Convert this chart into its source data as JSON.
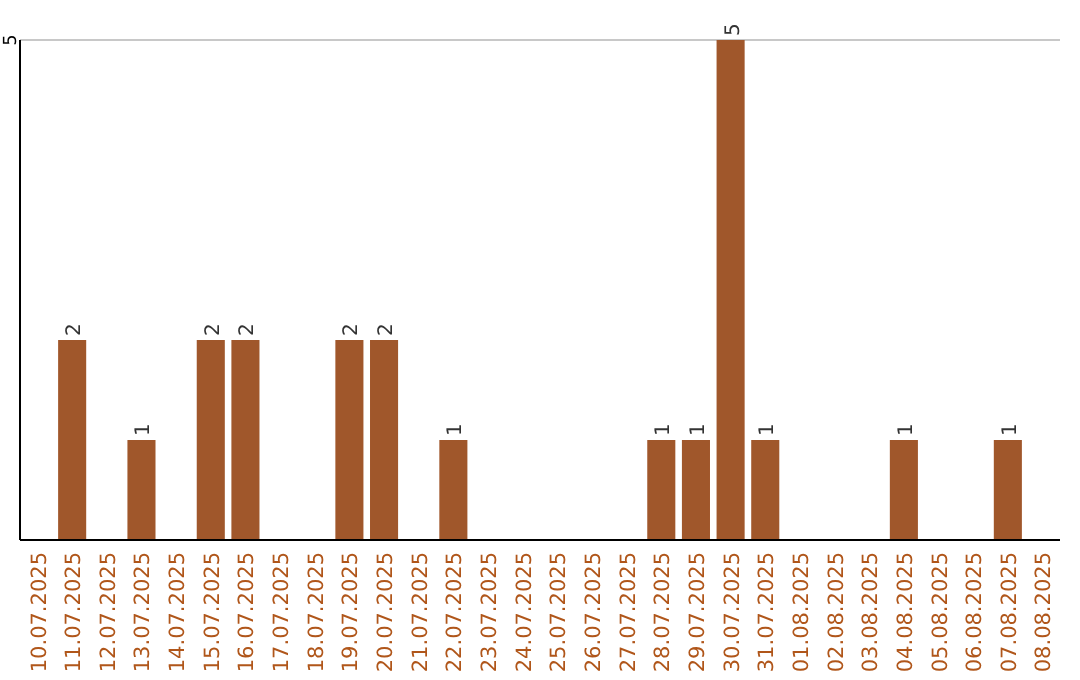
{
  "chart_data": {
    "type": "bar",
    "categories": [
      "10.07.2025",
      "11.07.2025",
      "12.07.2025",
      "13.07.2025",
      "14.07.2025",
      "15.07.2025",
      "16.07.2025",
      "17.07.2025",
      "18.07.2025",
      "19.07.2025",
      "20.07.2025",
      "21.07.2025",
      "22.07.2025",
      "23.07.2025",
      "24.07.2025",
      "25.07.2025",
      "26.07.2025",
      "27.07.2025",
      "28.07.2025",
      "29.07.2025",
      "30.07.2025",
      "31.07.2025",
      "01.08.2025",
      "02.08.2025",
      "03.08.2025",
      "04.08.2025",
      "05.08.2025",
      "06.08.2025",
      "07.08.2025",
      "08.08.2025"
    ],
    "values": [
      0,
      2,
      0,
      1,
      0,
      2,
      2,
      0,
      0,
      2,
      2,
      0,
      1,
      0,
      0,
      0,
      0,
      0,
      1,
      1,
      5,
      1,
      0,
      0,
      0,
      1,
      0,
      0,
      1,
      0
    ],
    "value_labels": [
      null,
      "2",
      null,
      "1",
      null,
      "2",
      "2",
      null,
      null,
      "2",
      "2",
      null,
      "1",
      null,
      null,
      null,
      null,
      null,
      "1",
      "1",
      "5",
      "1",
      null,
      null,
      null,
      "1",
      null,
      null,
      "1",
      null
    ],
    "color": "#a0572b",
    "ylim": [
      0,
      5
    ],
    "yticks": [
      5
    ],
    "ref_lines": [
      {
        "axis": "y",
        "value": 5,
        "color": "#c8c8c8"
      }
    ]
  }
}
